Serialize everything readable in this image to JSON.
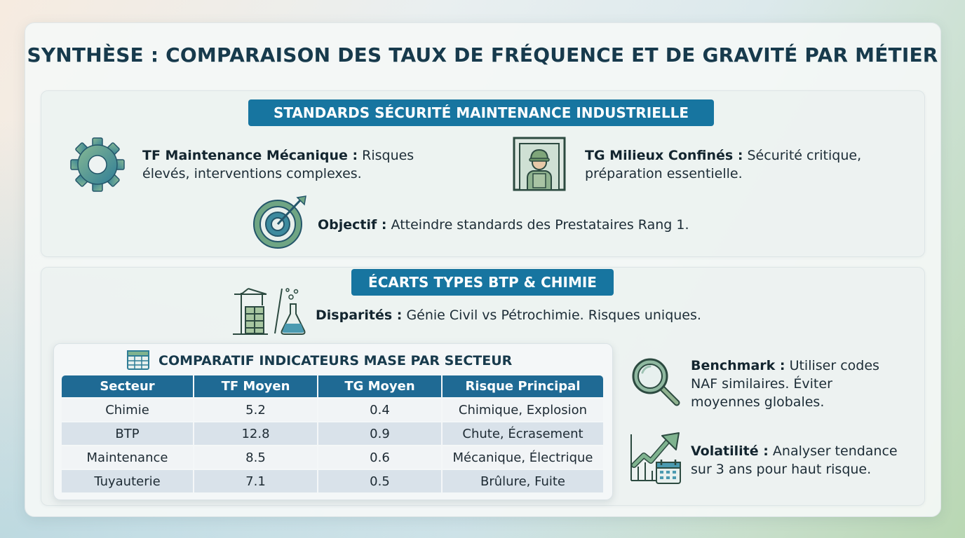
{
  "title": "SYNTHÈSE : COMPARAISON DES TAUX DE FRÉQUENCE ET DE GRAVITÉ PAR MÉTIER",
  "standards": {
    "heading": "STANDARDS SÉCURITÉ MAINTENANCE INDUSTRIELLE",
    "items": [
      {
        "icon": "gear-icon",
        "label": "TF Maintenance Mécanique :",
        "text_line1": "Risques",
        "text_line2": "élevés, interventions complexes."
      },
      {
        "icon": "confined-space-worker-icon",
        "label": "TG Milieux Confinés :",
        "text_line1": "Sécurité critique,",
        "text_line2": "préparation essentielle."
      },
      {
        "icon": "target-icon",
        "label": "Objectif :",
        "text_line1": "Atteindre standards des Prestataires Rang 1."
      }
    ]
  },
  "ecarts": {
    "heading": "ÉCARTS TYPES BTP & CHIMIE",
    "disparites": {
      "icon": "construction-chemistry-icon",
      "label": "Disparités :",
      "text": "Génie Civil vs Pétrochimie. Risques uniques."
    },
    "table": {
      "icon": "table-icon",
      "title": "COMPARATIF INDICATEURS MASE PAR SECTEUR",
      "columns": [
        "Secteur",
        "TF Moyen",
        "TG Moyen",
        "Risque Principal"
      ],
      "rows": [
        [
          "Chimie",
          "5.2",
          "0.4",
          "Chimique, Explosion"
        ],
        [
          "BTP",
          "12.8",
          "0.9",
          "Chute, Écrasement"
        ],
        [
          "Maintenance",
          "8.5",
          "0.6",
          "Mécanique, Électrique"
        ],
        [
          "Tuyauterie",
          "7.1",
          "0.5",
          "Brûlure, Fuite"
        ]
      ]
    },
    "benchmark": {
      "icon": "magnifier-icon",
      "label": "Benchmark :",
      "text_line1": "Utiliser codes",
      "text_line2": "NAF similaires. Éviter",
      "text_line3": "moyennes globales."
    },
    "volatilite": {
      "icon": "trend-chart-calendar-icon",
      "label": "Volatilité :",
      "text_line1": "Analyser tendance",
      "text_line2": "sur 3 ans pour haut risque."
    }
  },
  "colors": {
    "banner": "#1775a0",
    "table_header": "#1f6a94",
    "title": "#173a4c",
    "row_alt": "#d9e2ea"
  }
}
